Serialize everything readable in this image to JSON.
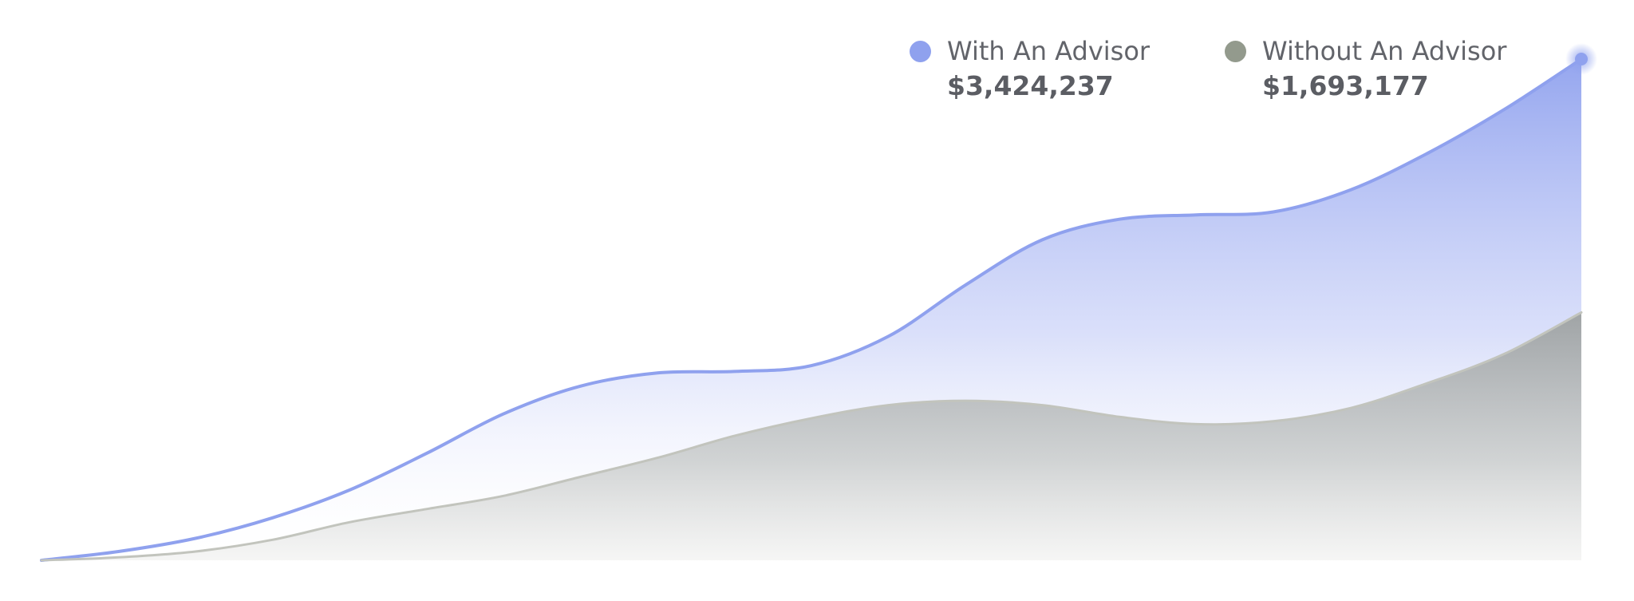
{
  "chart_data": {
    "type": "area",
    "title": "",
    "xlabel": "",
    "ylabel": "",
    "ylim": [
      0,
      3424237
    ],
    "x": [
      0,
      1,
      2,
      3,
      4,
      5,
      6,
      7,
      8,
      9,
      10,
      11,
      12,
      13,
      14,
      15,
      16,
      17,
      18,
      19,
      20
    ],
    "series": [
      {
        "name": "With An Advisor",
        "color": "#8fa1ee",
        "display_value": "$3,424,237",
        "values": [
          0,
          60000,
          150000,
          290000,
          480000,
          730000,
          1000000,
          1190000,
          1280000,
          1290000,
          1330000,
          1530000,
          1880000,
          2190000,
          2330000,
          2360000,
          2380000,
          2530000,
          2780000,
          3080000,
          3424237
        ]
      },
      {
        "name": "Without An Advisor",
        "color": "#939a8d",
        "display_value": "$1,693,177",
        "values": [
          0,
          20000,
          60000,
          140000,
          260000,
          350000,
          440000,
          570000,
          700000,
          850000,
          970000,
          1060000,
          1090000,
          1060000,
          980000,
          930000,
          950000,
          1040000,
          1210000,
          1410000,
          1693177
        ]
      }
    ],
    "legend": "top-right",
    "grid": false
  }
}
